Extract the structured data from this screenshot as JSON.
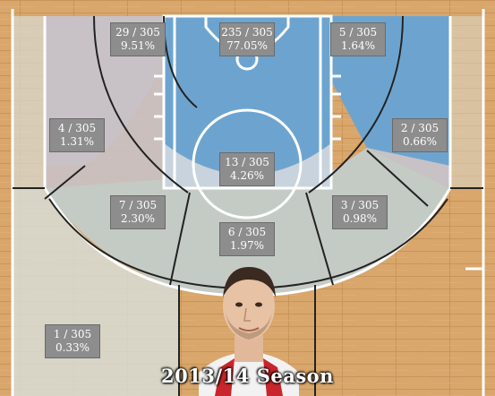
{
  "season": "2013/14 Season",
  "colors": {
    "floor": "#d8a56a",
    "lines": "#ffffff",
    "zone_hot": "#6da4cf",
    "zone_neutral_light": "#d7ddd6",
    "zone_neutral_mid": "#c4cbc5",
    "zone_cool_light": "#c8c2c6",
    "label_bg": "#8d8d8d"
  },
  "zones": [
    {
      "id": "restricted-area",
      "attempts": "235 / 305",
      "pct": "77.05%"
    },
    {
      "id": "left-baseline-midrange",
      "attempts": "29 / 305",
      "pct": "9.51%"
    },
    {
      "id": "right-baseline-midrange",
      "attempts": "5 / 305",
      "pct": "1.64%"
    },
    {
      "id": "left-corner-three",
      "attempts": "4 / 305",
      "pct": "1.31%"
    },
    {
      "id": "right-corner-three",
      "attempts": "2 / 305",
      "pct": "0.66%"
    },
    {
      "id": "paint-non-ra",
      "attempts": "13 / 305",
      "pct": "4.26%"
    },
    {
      "id": "left-wing-midrange",
      "attempts": "7 / 305",
      "pct": "2.30%"
    },
    {
      "id": "right-wing-midrange",
      "attempts": "3 / 305",
      "pct": "0.98%"
    },
    {
      "id": "top-key-midrange",
      "attempts": "6 / 305",
      "pct": "1.97%"
    },
    {
      "id": "left-wing-three",
      "attempts": "1 / 305",
      "pct": "0.33%"
    }
  ]
}
